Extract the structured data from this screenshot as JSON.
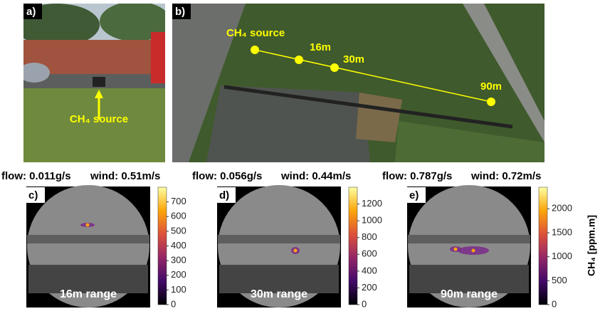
{
  "photo_a": {
    "label": "a)",
    "annotation": "CH₄ source"
  },
  "map_b": {
    "label": "b)",
    "source": "CH₄ source",
    "distances": [
      "16m",
      "30m",
      "90m"
    ]
  },
  "measurements": [
    {
      "label": "c)",
      "flow": "flow: 0.011g/s",
      "wind": "wind: 0.51m/s",
      "range": "16m range",
      "colorbar": {
        "lim": [
          0,
          800
        ],
        "ticks": [
          0,
          100,
          200,
          300,
          400,
          500,
          600,
          700
        ]
      }
    },
    {
      "label": "d)",
      "flow": "flow: 0.056g/s",
      "wind": "wind: 0.44m/s",
      "range": "30m range",
      "colorbar": {
        "lim": [
          0,
          1400
        ],
        "ticks": [
          0,
          200,
          400,
          600,
          800,
          1000,
          1200
        ]
      }
    },
    {
      "label": "e)",
      "flow": "flow: 0.787g/s",
      "wind": "wind: 0.72m/s",
      "range": "90m range",
      "colorbar": {
        "lim": [
          0,
          2450
        ],
        "ticks": [
          0,
          500,
          1000,
          1500,
          2000
        ]
      }
    }
  ],
  "colorbar_label": "CH₄ [ppm.m]"
}
